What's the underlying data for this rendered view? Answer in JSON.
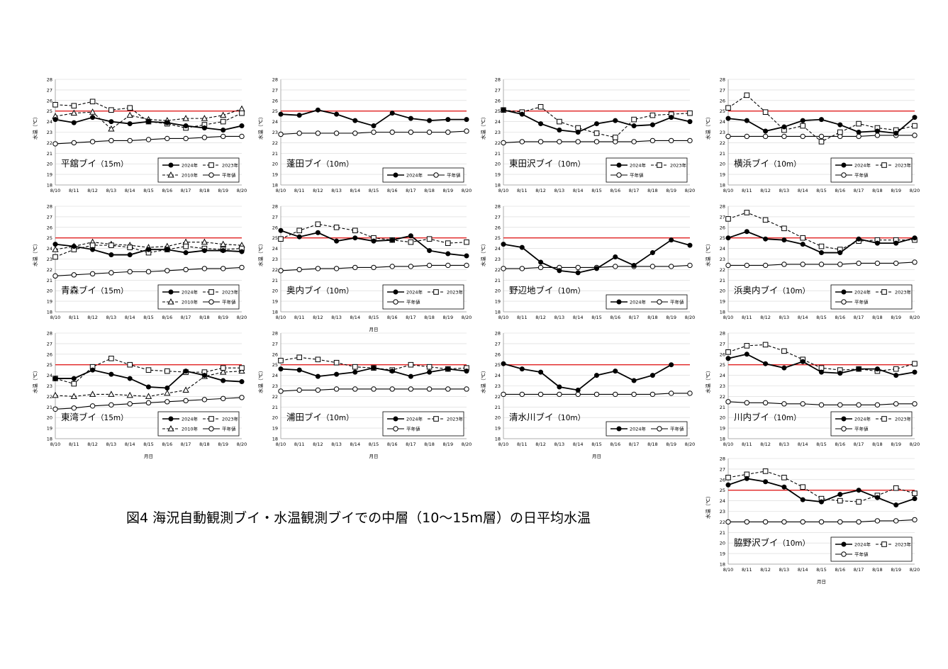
{
  "figure_title": "図4 海況自動観測ブイ・水温観測ブイでの中層（10～15m層）の日平均水温",
  "common": {
    "x_ticks": [
      "8/10",
      "8/11",
      "8/12",
      "8/13",
      "8/14",
      "8/15",
      "8/16",
      "8/17",
      "8/18",
      "8/19",
      "8/20"
    ],
    "y_ticks": [
      "18",
      "19",
      "20",
      "21",
      "22",
      "23",
      "24",
      "25",
      "26",
      "27",
      "28"
    ],
    "ylabel": "水温（℃）",
    "xlabel": "月日",
    "reference_line": 25,
    "reference_color": "#e02020"
  },
  "chart_data": [
    {
      "type": "line",
      "panel": "平舘ブイ",
      "depth": "（15m）",
      "title": "平舘ブイ（15m）",
      "x": [
        "8/10",
        "8/11",
        "8/12",
        "8/13",
        "8/14",
        "8/15",
        "8/16",
        "8/17",
        "8/18",
        "8/19",
        "8/20"
      ],
      "ylim": [
        18,
        28
      ],
      "xlabel": "",
      "legend": "bottom-right",
      "series": [
        {
          "name": "2024年",
          "marker": "filled-circle",
          "dash": false,
          "values": [
            24.2,
            23.9,
            24.4,
            24.0,
            23.8,
            24.0,
            23.9,
            23.6,
            23.4,
            23.2,
            23.6
          ]
        },
        {
          "name": "2023年",
          "marker": "open-square",
          "dash": true,
          "values": [
            25.6,
            25.5,
            25.9,
            25.1,
            25.3,
            24.0,
            23.8,
            23.4,
            23.7,
            24.0,
            24.8
          ]
        },
        {
          "name": "2010年",
          "marker": "open-triangle",
          "dash": true,
          "values": [
            24.5,
            24.8,
            24.9,
            23.3,
            24.6,
            24.2,
            24.1,
            24.3,
            24.3,
            24.6,
            25.2
          ]
        },
        {
          "name": "平年値",
          "marker": "open-circle",
          "dash": false,
          "values": [
            21.9,
            22.0,
            22.1,
            22.2,
            22.2,
            22.3,
            22.4,
            22.4,
            22.5,
            22.6,
            22.6
          ]
        }
      ]
    },
    {
      "type": "line",
      "panel": "蓬田ブイ",
      "depth": "（10m）",
      "title": "蓬田ブイ（10m）",
      "x": [
        "8/10",
        "8/11",
        "8/12",
        "8/13",
        "8/14",
        "8/15",
        "8/16",
        "8/17",
        "8/18",
        "8/19",
        "8/20"
      ],
      "ylim": [
        18,
        28
      ],
      "xlabel": "",
      "legend": "bottom-right",
      "series": [
        {
          "name": "2024年",
          "marker": "filled-circle",
          "dash": false,
          "values": [
            24.7,
            24.6,
            25.1,
            24.7,
            24.1,
            23.6,
            24.8,
            24.3,
            24.1,
            24.2,
            24.2
          ]
        },
        {
          "name": "平年値",
          "marker": "open-circle",
          "dash": false,
          "values": [
            22.8,
            22.9,
            22.9,
            22.9,
            22.9,
            23.0,
            23.0,
            23.0,
            23.0,
            23.0,
            23.1
          ]
        }
      ]
    },
    {
      "type": "line",
      "panel": "東田沢ブイ",
      "depth": "（10m）",
      "title": "東田沢ブイ（10m）",
      "x": [
        "8/10",
        "8/11",
        "8/12",
        "8/13",
        "8/14",
        "8/15",
        "8/16",
        "8/17",
        "8/18",
        "8/19",
        "8/20"
      ],
      "ylim": [
        18,
        28
      ],
      "xlabel": "",
      "legend": "bottom-right",
      "series": [
        {
          "name": "2024年",
          "marker": "filled-circle",
          "dash": false,
          "values": [
            25.1,
            24.7,
            23.8,
            23.2,
            23.0,
            23.8,
            24.1,
            23.6,
            23.7,
            24.4,
            24.0
          ]
        },
        {
          "name": "2023年",
          "marker": "open-square",
          "dash": true,
          "values": [
            25.1,
            24.9,
            25.4,
            24.0,
            23.4,
            22.9,
            22.5,
            24.2,
            24.6,
            24.7,
            24.8
          ]
        },
        {
          "name": "平年値",
          "marker": "open-circle",
          "dash": false,
          "values": [
            22.0,
            22.1,
            22.1,
            22.1,
            22.1,
            22.1,
            22.1,
            22.1,
            22.2,
            22.2,
            22.2
          ]
        }
      ]
    },
    {
      "type": "line",
      "panel": "横浜ブイ",
      "depth": "（10m）",
      "title": "横浜ブイ（10m）",
      "x": [
        "8/10",
        "8/11",
        "8/12",
        "8/13",
        "8/14",
        "8/15",
        "8/16",
        "8/17",
        "8/18",
        "8/19",
        "8/20"
      ],
      "ylim": [
        18,
        28
      ],
      "xlabel": "",
      "legend": "bottom-right",
      "series": [
        {
          "name": "2024年",
          "marker": "filled-circle",
          "dash": false,
          "values": [
            24.3,
            24.1,
            23.1,
            23.5,
            24.1,
            24.2,
            23.7,
            23.0,
            23.1,
            22.9,
            24.4
          ]
        },
        {
          "name": "2023年",
          "marker": "open-square",
          "dash": true,
          "values": [
            25.3,
            26.5,
            24.9,
            23.2,
            23.6,
            22.1,
            23.0,
            23.8,
            23.4,
            23.2,
            23.6
          ]
        },
        {
          "name": "平年値",
          "marker": "open-circle",
          "dash": false,
          "values": [
            22.6,
            22.6,
            22.6,
            22.6,
            22.6,
            22.6,
            22.6,
            22.6,
            22.7,
            22.7,
            22.7
          ]
        }
      ]
    },
    {
      "type": "line",
      "panel": "青森ブイ",
      "depth": "（15m）",
      "title": "青森ブイ（15m）",
      "x": [
        "8/10",
        "8/11",
        "8/12",
        "8/13",
        "8/14",
        "8/15",
        "8/16",
        "8/17",
        "8/18",
        "8/19",
        "8/20"
      ],
      "ylim": [
        18,
        28
      ],
      "xlabel": "",
      "legend": "bottom-right",
      "series": [
        {
          "name": "2024年",
          "marker": "filled-circle",
          "dash": false,
          "values": [
            24.4,
            24.2,
            23.9,
            23.4,
            23.4,
            23.9,
            23.9,
            23.6,
            23.8,
            23.8,
            23.7
          ]
        },
        {
          "name": "2023年",
          "marker": "open-square",
          "dash": true,
          "values": [
            23.2,
            23.9,
            24.3,
            24.3,
            24.1,
            23.6,
            23.9,
            24.2,
            24.0,
            23.9,
            24.0
          ]
        },
        {
          "name": "2010年",
          "marker": "open-triangle",
          "dash": true,
          "values": [
            23.9,
            24.2,
            24.6,
            24.4,
            24.3,
            24.1,
            24.2,
            24.6,
            24.6,
            24.4,
            24.3
          ]
        },
        {
          "name": "平年値",
          "marker": "open-circle",
          "dash": false,
          "values": [
            21.4,
            21.5,
            21.6,
            21.7,
            21.8,
            21.8,
            21.9,
            22.0,
            22.1,
            22.1,
            22.2
          ]
        }
      ]
    },
    {
      "type": "line",
      "panel": "奥内ブイ",
      "depth": "（10m）",
      "title": "奥内ブイ（10m）",
      "x": [
        "8/10",
        "8/11",
        "8/12",
        "8/13",
        "8/14",
        "8/15",
        "8/16",
        "8/17",
        "8/18",
        "8/19",
        "8/20"
      ],
      "ylim": [
        18,
        28
      ],
      "xlabel": "月日",
      "legend": "bottom-right",
      "series": [
        {
          "name": "2024年",
          "marker": "filled-circle",
          "dash": false,
          "values": [
            25.7,
            25.1,
            25.5,
            24.7,
            25.0,
            24.7,
            24.8,
            25.2,
            23.8,
            23.5,
            23.3
          ]
        },
        {
          "name": "2023年",
          "marker": "open-square",
          "dash": true,
          "values": [
            24.9,
            25.7,
            26.3,
            26.0,
            25.7,
            25.0,
            24.8,
            24.6,
            24.9,
            24.5,
            24.6
          ]
        },
        {
          "name": "平年値",
          "marker": "open-circle",
          "dash": false,
          "values": [
            21.9,
            22.0,
            22.1,
            22.1,
            22.2,
            22.2,
            22.3,
            22.3,
            22.4,
            22.4,
            22.4
          ]
        }
      ]
    },
    {
      "type": "line",
      "panel": "野辺地ブイ",
      "depth": "（10m）",
      "title": "野辺地ブイ（10m）",
      "x": [
        "8/10",
        "8/11",
        "8/12",
        "8/13",
        "8/14",
        "8/15",
        "8/16",
        "8/17",
        "8/18",
        "8/19",
        "8/20"
      ],
      "ylim": [
        18,
        28
      ],
      "xlabel": "",
      "legend": "bottom-right",
      "series": [
        {
          "name": "2024年",
          "marker": "filled-circle",
          "dash": false,
          "values": [
            24.4,
            24.1,
            22.7,
            21.9,
            21.7,
            22.1,
            23.2,
            22.4,
            23.6,
            24.8,
            24.3
          ]
        },
        {
          "name": "平年値",
          "marker": "open-circle",
          "dash": false,
          "values": [
            22.1,
            22.1,
            22.2,
            22.2,
            22.2,
            22.2,
            22.3,
            22.3,
            22.3,
            22.3,
            22.4
          ]
        }
      ]
    },
    {
      "type": "line",
      "panel": "浜奥内ブイ",
      "depth": "（10m）",
      "title": "浜奥内ブイ（10m）",
      "x": [
        "8/10",
        "8/11",
        "8/12",
        "8/13",
        "8/14",
        "8/15",
        "8/16",
        "8/17",
        "8/18",
        "8/19",
        "8/20"
      ],
      "ylim": [
        18,
        28
      ],
      "xlabel": "",
      "legend": "bottom-right",
      "series": [
        {
          "name": "2024年",
          "marker": "filled-circle",
          "dash": false,
          "values": [
            25.0,
            25.6,
            24.9,
            24.8,
            24.4,
            23.6,
            23.6,
            24.9,
            24.5,
            24.5,
            25.0
          ]
        },
        {
          "name": "2023年",
          "marker": "open-square",
          "dash": true,
          "values": [
            26.8,
            27.4,
            26.7,
            25.9,
            25.0,
            24.2,
            23.9,
            24.7,
            24.8,
            24.8,
            24.8
          ]
        },
        {
          "name": "平年値",
          "marker": "open-circle",
          "dash": false,
          "values": [
            22.4,
            22.4,
            22.4,
            22.5,
            22.5,
            22.5,
            22.5,
            22.6,
            22.6,
            22.6,
            22.7
          ]
        }
      ]
    },
    {
      "type": "line",
      "panel": "東湾ブイ",
      "depth": "（15m）",
      "title": "東湾ブイ（15m）",
      "x": [
        "8/10",
        "8/11",
        "8/12",
        "8/13",
        "8/14",
        "8/15",
        "8/16",
        "8/17",
        "8/18",
        "8/19",
        "8/20"
      ],
      "ylim": [
        18,
        28
      ],
      "xlabel": "月日",
      "legend": "bottom-right",
      "series": [
        {
          "name": "2024年",
          "marker": "filled-circle",
          "dash": false,
          "values": [
            23.7,
            23.7,
            24.5,
            24.1,
            23.7,
            22.9,
            22.8,
            24.4,
            24.0,
            23.5,
            23.4
          ]
        },
        {
          "name": "2023年",
          "marker": "open-square",
          "dash": true,
          "values": [
            23.7,
            23.2,
            24.8,
            25.6,
            25.0,
            24.5,
            24.4,
            24.3,
            24.3,
            24.7,
            24.7
          ]
        },
        {
          "name": "2010年",
          "marker": "open-triangle",
          "dash": true,
          "values": [
            22.1,
            22.0,
            22.2,
            22.2,
            22.1,
            22.0,
            22.3,
            22.6,
            23.9,
            24.3,
            24.4
          ]
        },
        {
          "name": "平年値",
          "marker": "open-circle",
          "dash": false,
          "values": [
            20.8,
            20.9,
            21.1,
            21.2,
            21.3,
            21.4,
            21.5,
            21.6,
            21.7,
            21.8,
            21.9
          ]
        }
      ]
    },
    {
      "type": "line",
      "panel": "浦田ブイ",
      "depth": "（10m）",
      "title": "浦田ブイ（10m）",
      "x": [
        "8/10",
        "8/11",
        "8/12",
        "8/13",
        "8/14",
        "8/15",
        "8/16",
        "8/17",
        "8/18",
        "8/19",
        "8/20"
      ],
      "ylim": [
        18,
        28
      ],
      "xlabel": "月日",
      "legend": "bottom-right",
      "series": [
        {
          "name": "2024年",
          "marker": "filled-circle",
          "dash": false,
          "values": [
            24.6,
            24.5,
            23.9,
            24.1,
            24.3,
            24.7,
            24.4,
            23.9,
            24.3,
            24.6,
            24.4
          ]
        },
        {
          "name": "2023年",
          "marker": "open-square",
          "dash": true,
          "values": [
            25.4,
            25.7,
            25.5,
            25.2,
            24.8,
            24.7,
            24.5,
            25.0,
            24.8,
            24.6,
            24.7
          ]
        },
        {
          "name": "平年値",
          "marker": "open-circle",
          "dash": false,
          "values": [
            22.5,
            22.6,
            22.6,
            22.7,
            22.7,
            22.7,
            22.7,
            22.7,
            22.7,
            22.7,
            22.7
          ]
        }
      ]
    },
    {
      "type": "line",
      "panel": "清水川ブイ",
      "depth": "（10m）",
      "title": "清水川ブイ（10m）",
      "x": [
        "8/10",
        "8/11",
        "8/12",
        "8/13",
        "8/14",
        "8/15",
        "8/16",
        "8/17",
        "8/18",
        "8/19",
        "8/20"
      ],
      "ylim": [
        18,
        28
      ],
      "xlabel": "月日",
      "legend": "bottom-right",
      "series": [
        {
          "name": "2024年",
          "marker": "filled-circle",
          "dash": false,
          "values": [
            25.1,
            24.6,
            24.3,
            22.9,
            22.6,
            24.0,
            24.4,
            23.5,
            24.0,
            25.0,
            null
          ]
        },
        {
          "name": "平年値",
          "marker": "open-circle",
          "dash": false,
          "values": [
            22.2,
            22.2,
            22.2,
            22.2,
            22.2,
            22.2,
            22.2,
            22.2,
            22.2,
            22.3,
            22.3
          ]
        }
      ]
    },
    {
      "type": "line",
      "panel": "川内ブイ",
      "depth": "（10m）",
      "title": "川内ブイ（10m）",
      "x": [
        "8/10",
        "8/11",
        "8/12",
        "8/13",
        "8/14",
        "8/15",
        "8/16",
        "8/17",
        "8/18",
        "8/19",
        "8/20"
      ],
      "ylim": [
        18,
        28
      ],
      "xlabel": "",
      "legend": "bottom-right",
      "series": [
        {
          "name": "2024年",
          "marker": "filled-circle",
          "dash": false,
          "values": [
            25.6,
            26.0,
            25.1,
            24.7,
            25.3,
            24.3,
            24.2,
            24.6,
            24.6,
            24.0,
            24.3
          ]
        },
        {
          "name": "2023年",
          "marker": "open-square",
          "dash": true,
          "values": [
            26.2,
            26.8,
            26.9,
            26.3,
            25.5,
            24.7,
            24.5,
            24.6,
            24.4,
            24.6,
            25.1
          ]
        },
        {
          "name": "平年値",
          "marker": "open-circle",
          "dash": false,
          "values": [
            21.5,
            21.4,
            21.4,
            21.3,
            21.3,
            21.2,
            21.2,
            21.2,
            21.2,
            21.3,
            21.3
          ]
        }
      ]
    },
    {
      "type": "line",
      "panel": "脇野沢ブイ",
      "depth": "（10m）",
      "title": "脇野沢ブイ（10m）",
      "x": [
        "8/10",
        "8/11",
        "8/12",
        "8/13",
        "8/14",
        "8/15",
        "8/16",
        "8/17",
        "8/18",
        "8/19",
        "8/20"
      ],
      "ylim": [
        18,
        28
      ],
      "xlabel": "月日",
      "legend": "bottom-right",
      "series": [
        {
          "name": "2024年",
          "marker": "filled-circle",
          "dash": false,
          "values": [
            25.5,
            26.1,
            25.8,
            25.3,
            24.1,
            23.9,
            24.6,
            25.0,
            24.3,
            23.6,
            24.2
          ]
        },
        {
          "name": "2023年",
          "marker": "open-square",
          "dash": true,
          "values": [
            26.2,
            26.5,
            26.8,
            26.2,
            25.3,
            24.2,
            24.0,
            23.9,
            24.5,
            25.2,
            24.7
          ]
        },
        {
          "name": "平年値",
          "marker": "open-circle",
          "dash": false,
          "values": [
            22.0,
            22.0,
            22.0,
            22.0,
            22.0,
            22.0,
            22.0,
            22.0,
            22.1,
            22.1,
            22.2
          ]
        }
      ]
    }
  ]
}
